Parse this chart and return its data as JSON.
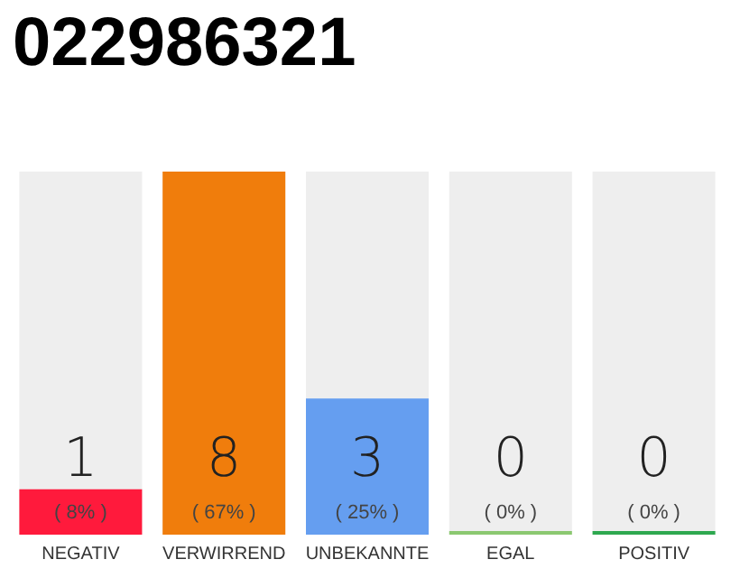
{
  "chart_data": {
    "type": "bar",
    "title": "022986321",
    "categories": [
      "NEGATIV",
      "VERWIRREND",
      "UNBEKANNTE",
      "EGAL",
      "POSITIV"
    ],
    "values": [
      1,
      8,
      3,
      0,
      0
    ],
    "colors": [
      "#ff1a3c",
      "#f07d0c",
      "#659ef0",
      "#8bc870",
      "#2ea84f"
    ],
    "value_labels": [
      "1\n( 8% )",
      "8\n( 67% )",
      "3\n( 25% )",
      "0\n( 0% )",
      "0\n( 0% )"
    ],
    "grid": false
  }
}
